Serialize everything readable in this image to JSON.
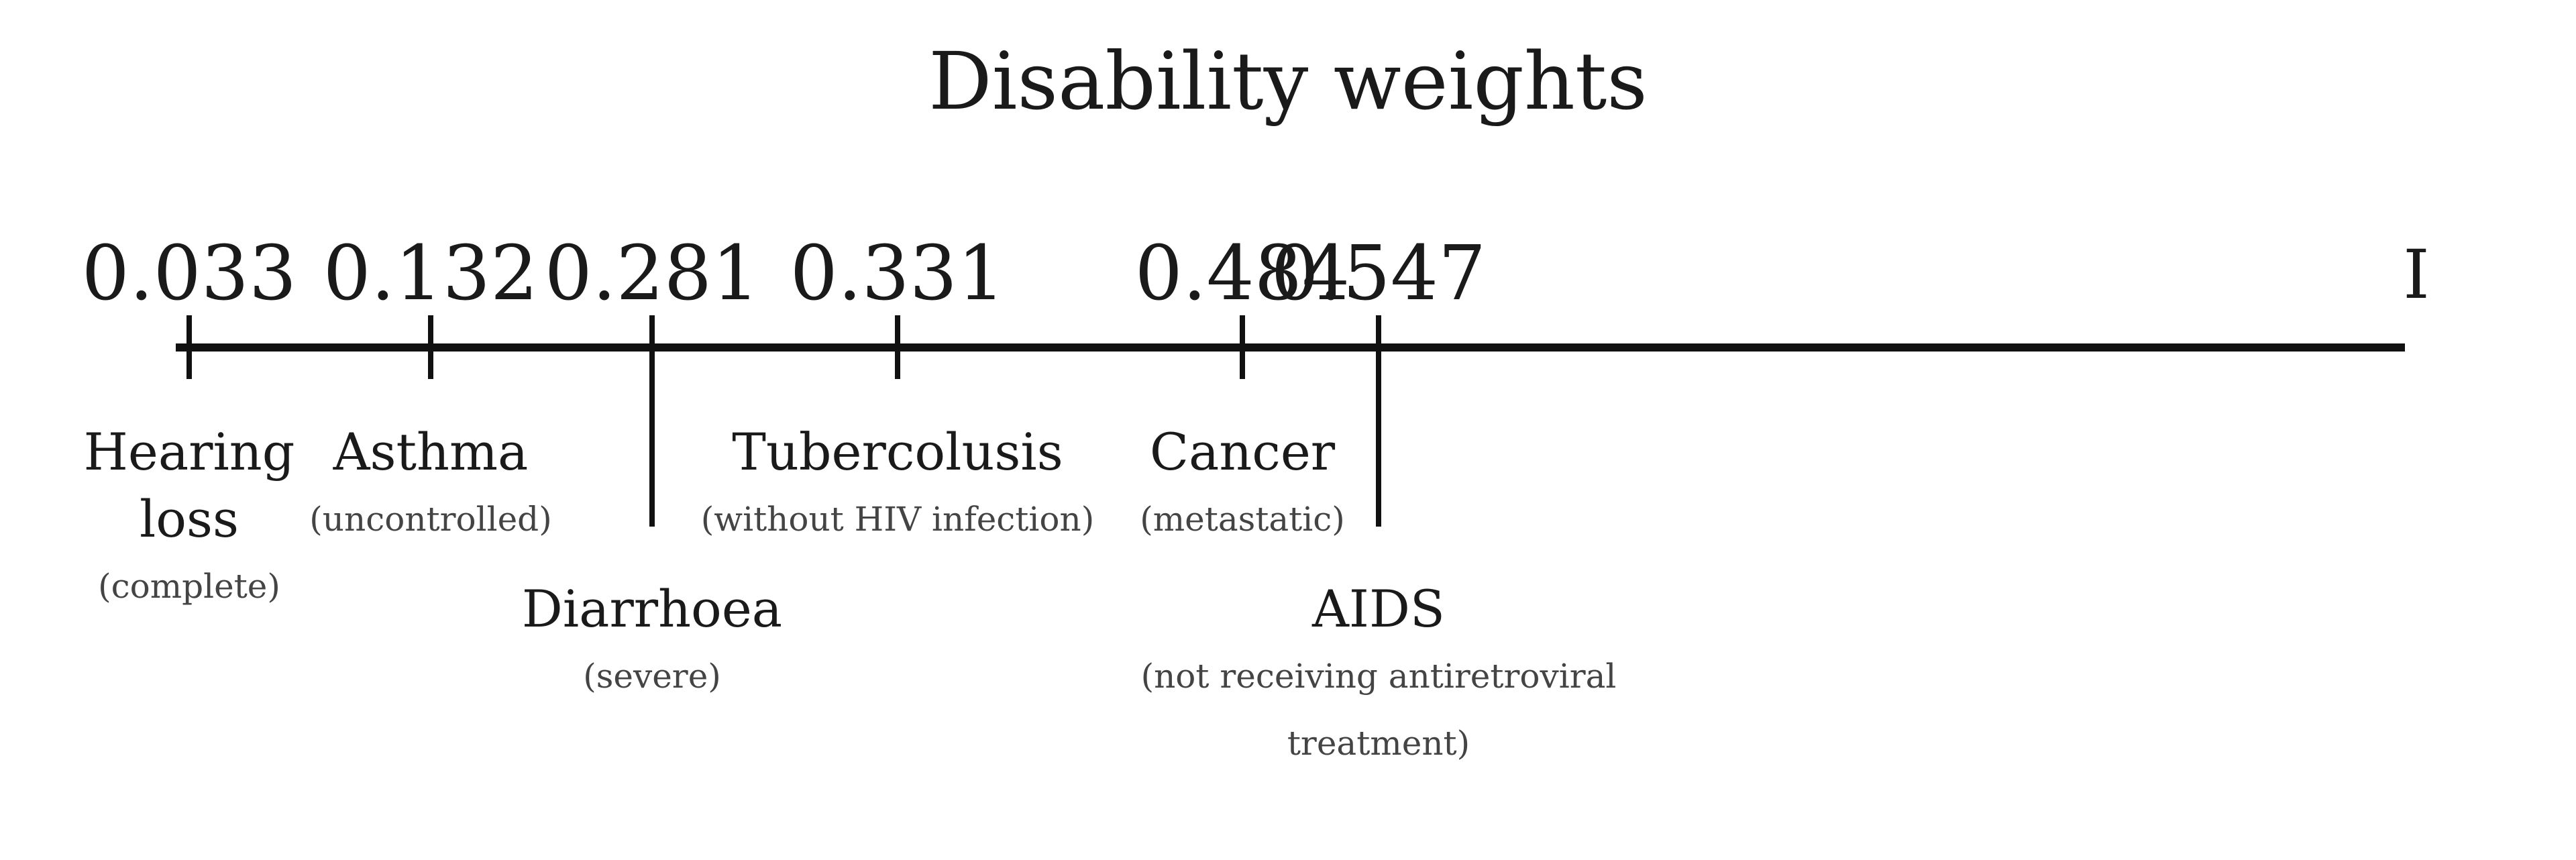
{
  "title": "Disability weights",
  "axis": {
    "min": 0.033,
    "max": 1,
    "end_label": "I"
  },
  "conditions": [
    {
      "value": 0.033,
      "value_label": "0.033",
      "name_lines": [
        "Hearing",
        "loss"
      ],
      "qualifier": "(complete)",
      "tick": "short",
      "label_row": "upper"
    },
    {
      "value": 0.132,
      "value_label": "0.132",
      "name_lines": [
        "Asthma"
      ],
      "qualifier": "(uncontrolled)",
      "tick": "short",
      "label_row": "upper"
    },
    {
      "value": 0.281,
      "value_label": "0.281",
      "name_lines": [
        "Diarrhoea"
      ],
      "qualifier": "(severe)",
      "tick": "long",
      "label_row": "lower"
    },
    {
      "value": 0.331,
      "value_label": "0.331",
      "name_lines": [
        "Tubercolusis"
      ],
      "qualifier": "(without HIV infection)",
      "tick": "short",
      "label_row": "upper"
    },
    {
      "value": 0.484,
      "value_label": "0.484",
      "name_lines": [
        "Cancer"
      ],
      "qualifier": "(metastatic)",
      "tick": "short",
      "label_row": "upper"
    },
    {
      "value": 0.547,
      "value_label": "0.547",
      "name_lines": [
        "AIDS"
      ],
      "qualifier_lines": [
        "(not receiving antiretroviral",
        "treatment)"
      ],
      "tick": "long",
      "label_row": "lower"
    }
  ]
}
